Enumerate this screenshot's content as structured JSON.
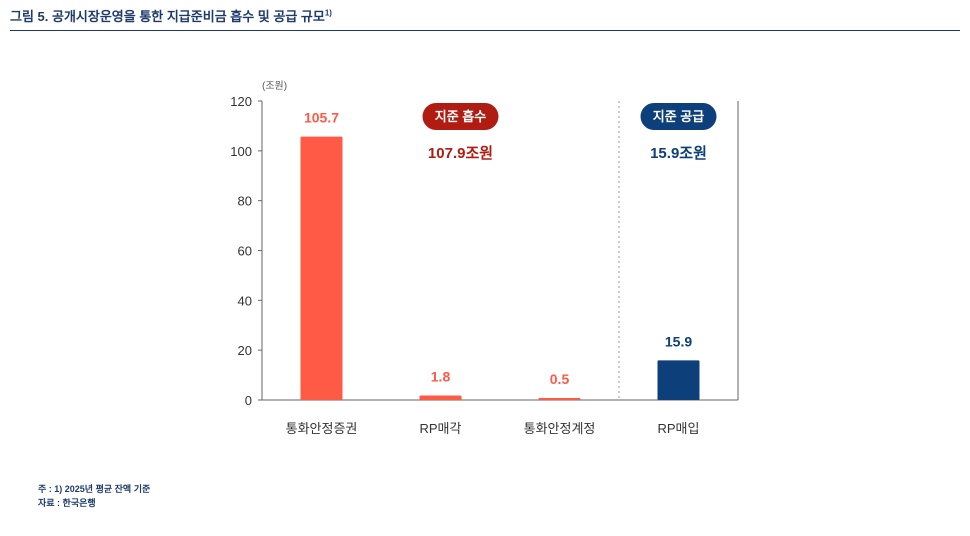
{
  "figure": {
    "title": "그림 5. 공개시장운영을 통한 지급준비금 흡수 및 공급 규모",
    "title_footnote_mark": "1)"
  },
  "chart_data": {
    "type": "bar",
    "unit_label": "(조원)",
    "categories": [
      "통화안정증권",
      "RP매각",
      "통화안정계정",
      "RP매입"
    ],
    "values": [
      105.7,
      1.8,
      0.5,
      15.9
    ],
    "value_labels": [
      "105.7",
      "1.8",
      "0.5",
      "15.9"
    ],
    "bar_colors": [
      "#ff5a45",
      "#ff5a45",
      "#ff5a45",
      "#0d3f7a"
    ],
    "label_colors": [
      "#ff5a45",
      "#ff5a45",
      "#ff5a45",
      "#0d3f7a"
    ],
    "ylim": [
      0,
      120
    ],
    "yticks": [
      0,
      20,
      40,
      60,
      80,
      100,
      120
    ],
    "grid": false,
    "groups": [
      {
        "badge": "지준 흡수",
        "total": "107.9조원",
        "color": "#b01c12",
        "from": 0,
        "to": 2
      },
      {
        "badge": "지준 공급",
        "total": "15.9조원",
        "color": "#0d3f7a",
        "from": 3,
        "to": 3
      }
    ],
    "divider_between": [
      2,
      3
    ]
  },
  "notes": {
    "note": "주 : 1) 2025년 평균 잔액 기준",
    "source": "자료 : 한국은행"
  }
}
